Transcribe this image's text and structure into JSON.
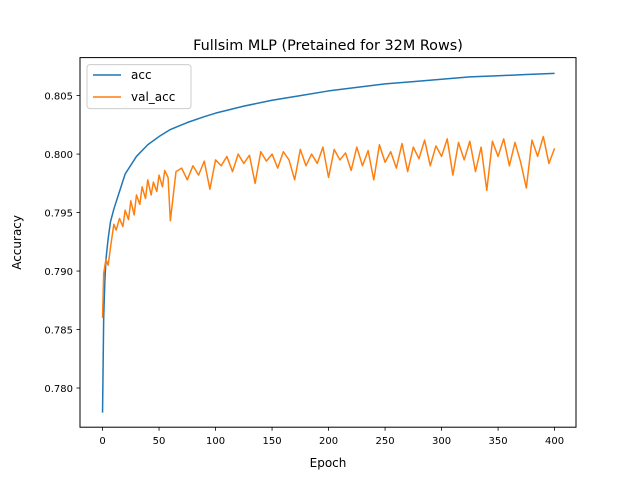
{
  "chart_data": {
    "type": "line",
    "title": "Fullsim MLP (Pretained for 32M Rows)",
    "xlabel": "Epoch",
    "ylabel": "Accuracy",
    "xlim": [
      -19.95,
      418.95
    ],
    "ylim": [
      0.77665,
      0.80825
    ],
    "xticks": [
      0,
      50,
      100,
      150,
      200,
      250,
      300,
      350,
      400
    ],
    "xtick_labels": [
      "0",
      "50",
      "100",
      "150",
      "200",
      "250",
      "300",
      "350",
      "400"
    ],
    "yticks": [
      0.78,
      0.785,
      0.79,
      0.795,
      0.8,
      0.805
    ],
    "ytick_labels": [
      "0.780",
      "0.785",
      "0.790",
      "0.795",
      "0.800",
      "0.805"
    ],
    "grid": false,
    "legend": "upper left",
    "epochs": 400,
    "series": [
      {
        "name": "acc",
        "color": "#1f77b4",
        "x": [
          0,
          1,
          2,
          3,
          5,
          7,
          10,
          15,
          20,
          30,
          40,
          50,
          60,
          75,
          90,
          100,
          125,
          150,
          175,
          200,
          225,
          250,
          275,
          300,
          325,
          350,
          375,
          400
        ],
        "values": [
          0.7779,
          0.786,
          0.789,
          0.791,
          0.7928,
          0.7942,
          0.7953,
          0.7968,
          0.7983,
          0.7998,
          0.8008,
          0.8015,
          0.8021,
          0.8027,
          0.8032,
          0.8035,
          0.8041,
          0.8046,
          0.805,
          0.8054,
          0.8057,
          0.806,
          0.8062,
          0.8064,
          0.8066,
          0.8067,
          0.8068,
          0.8069
        ]
      },
      {
        "name": "val_acc",
        "color": "#ff7f0e",
        "x": [
          0,
          1,
          3,
          5,
          7,
          10,
          12,
          15,
          18,
          20,
          23,
          25,
          28,
          30,
          33,
          35,
          38,
          40,
          43,
          45,
          48,
          50,
          53,
          55,
          58,
          60,
          65,
          70,
          75,
          80,
          85,
          90,
          95,
          100,
          105,
          110,
          115,
          120,
          125,
          130,
          135,
          140,
          145,
          150,
          155,
          160,
          165,
          170,
          175,
          180,
          185,
          190,
          195,
          200,
          205,
          210,
          215,
          220,
          225,
          230,
          235,
          240,
          245,
          250,
          255,
          260,
          265,
          270,
          275,
          280,
          285,
          290,
          295,
          300,
          305,
          310,
          315,
          320,
          325,
          330,
          335,
          340,
          345,
          350,
          355,
          360,
          365,
          370,
          375,
          380,
          385,
          390,
          395,
          400
        ],
        "values": [
          0.786,
          0.7898,
          0.791,
          0.7905,
          0.792,
          0.794,
          0.7935,
          0.7945,
          0.7938,
          0.7952,
          0.7944,
          0.796,
          0.7948,
          0.7965,
          0.7957,
          0.7972,
          0.7962,
          0.7978,
          0.7965,
          0.7976,
          0.7968,
          0.7982,
          0.7972,
          0.7986,
          0.798,
          0.7943,
          0.7985,
          0.7988,
          0.7978,
          0.799,
          0.7982,
          0.7994,
          0.797,
          0.7995,
          0.799,
          0.7998,
          0.7985,
          0.8,
          0.7992,
          0.7999,
          0.7975,
          0.8002,
          0.7994,
          0.8,
          0.7988,
          0.8002,
          0.7995,
          0.7978,
          0.8004,
          0.799,
          0.8,
          0.7992,
          0.8006,
          0.798,
          0.8004,
          0.7995,
          0.8001,
          0.7986,
          0.8006,
          0.799,
          0.8003,
          0.7978,
          0.8008,
          0.7993,
          0.8002,
          0.7988,
          0.8009,
          0.7985,
          0.8006,
          0.7996,
          0.8012,
          0.799,
          0.8007,
          0.7998,
          0.8013,
          0.7982,
          0.801,
          0.7995,
          0.8011,
          0.7985,
          0.8006,
          0.7969,
          0.8011,
          0.7998,
          0.8013,
          0.799,
          0.801,
          0.7993,
          0.7971,
          0.8012,
          0.7998,
          0.8015,
          0.7992,
          0.8005
        ]
      }
    ]
  }
}
